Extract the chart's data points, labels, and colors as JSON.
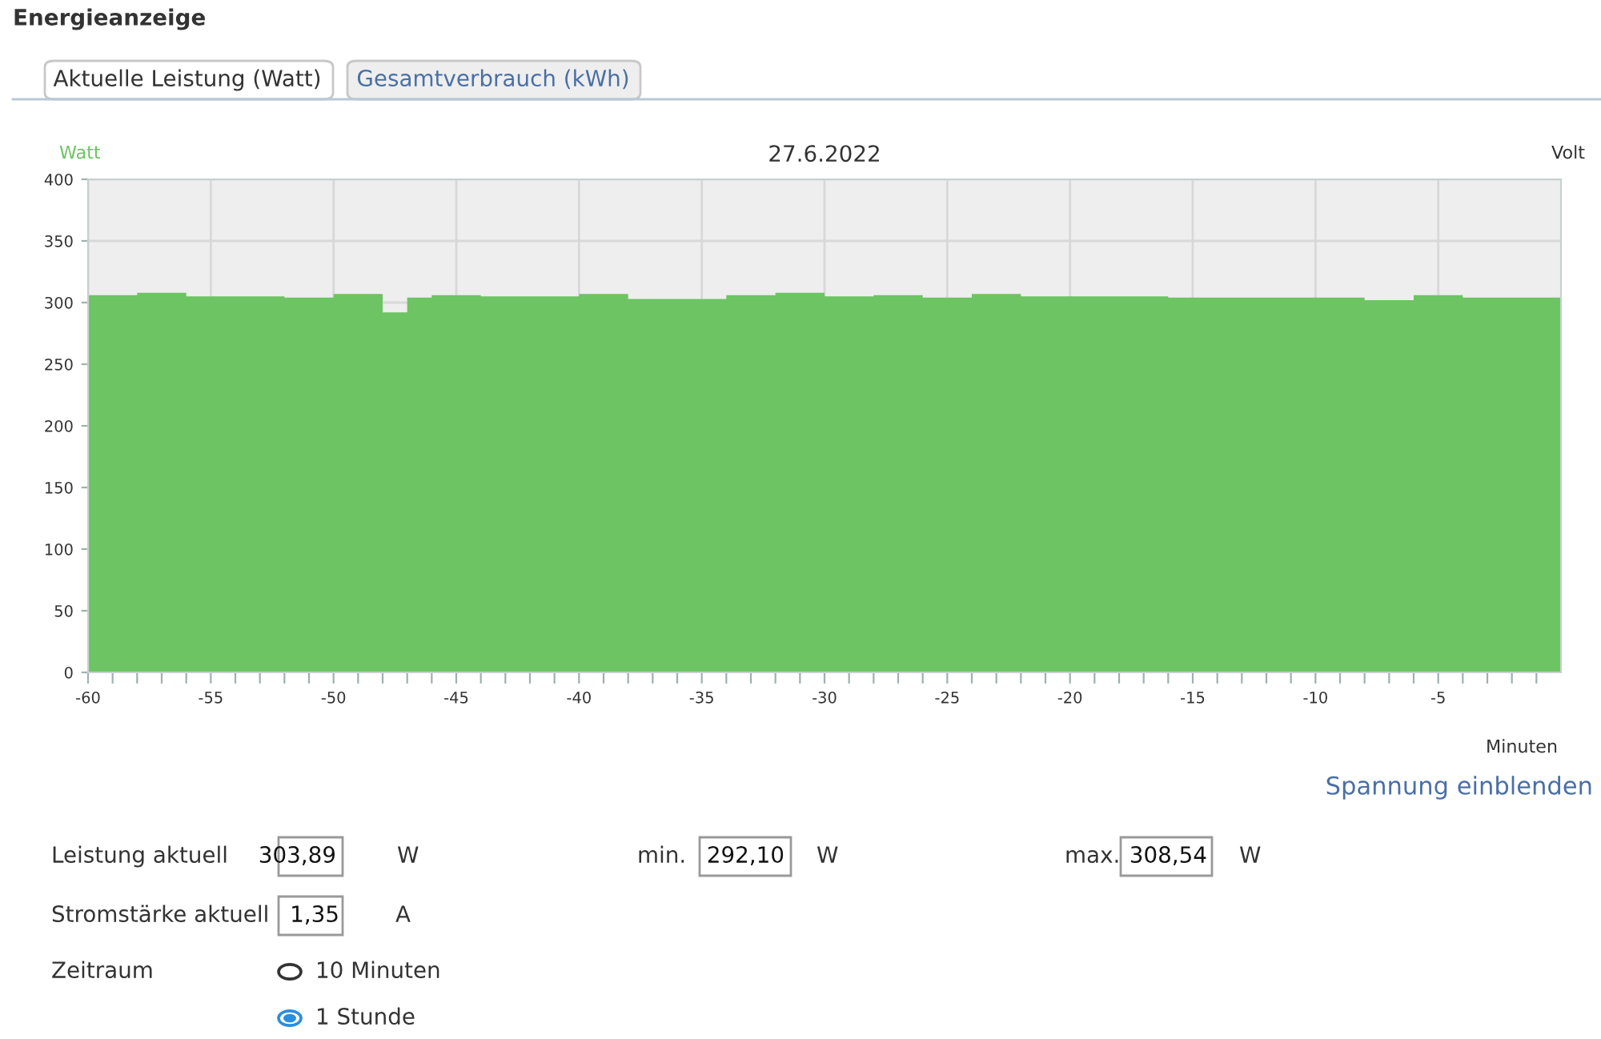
{
  "chart_data": {
    "type": "area",
    "title": "Energieanzeige",
    "subtitle": "27.6.2022",
    "ylabel": "Watt",
    "y2label": "Volt",
    "xlabel": "Minuten",
    "x": [
      -60,
      -58,
      -58,
      -56,
      -56,
      -52,
      -52,
      -50,
      -50,
      -48,
      -48,
      -47,
      -47,
      -46,
      -46,
      -44,
      -44,
      -40,
      -40,
      -38,
      -38,
      -34,
      -34,
      -32,
      -32,
      -30,
      -30,
      -28,
      -28,
      -26,
      -26,
      -24,
      -24,
      -22,
      -22,
      -16,
      -16,
      -8,
      -8,
      -6,
      -6,
      -4,
      -4,
      0
    ],
    "series": [
      {
        "color": "#6cc462",
        "values": [
          306,
          306,
          308,
          308,
          305,
          305,
          304,
          304,
          307,
          307,
          292,
          292,
          304,
          304,
          306,
          306,
          305,
          305,
          307,
          307,
          303,
          303,
          306,
          306,
          308,
          308,
          305,
          305,
          306,
          306,
          304,
          304,
          307,
          307,
          305,
          305,
          304,
          304,
          302,
          302,
          306,
          306,
          304,
          304
        ]
      }
    ],
    "xlim": [
      -60,
      0
    ],
    "ylim": [
      0,
      400
    ],
    "xticks": [
      -60,
      {
        "value": -59,
        "label": null
      },
      {
        "value": -58,
        "label": null
      },
      {
        "value": -57,
        "label": null
      },
      {
        "value": -56,
        "label": null
      },
      -55,
      {
        "value": -54,
        "label": null
      },
      {
        "value": -53,
        "label": null
      },
      {
        "value": -52,
        "label": null
      },
      {
        "value": -51,
        "label": null
      },
      -50,
      {
        "value": -49,
        "label": null
      },
      {
        "value": -48,
        "label": null
      },
      {
        "value": -47,
        "label": null
      },
      {
        "value": -46,
        "label": null
      },
      -45,
      {
        "value": -44,
        "label": null
      },
      {
        "value": -43,
        "label": null
      },
      {
        "value": -42,
        "label": null
      },
      {
        "value": -41,
        "label": null
      },
      -40,
      {
        "value": -39,
        "label": null
      },
      {
        "value": -38,
        "label": null
      },
      {
        "value": -37,
        "label": null
      },
      {
        "value": -36,
        "label": null
      },
      -35,
      {
        "value": -34,
        "label": null
      },
      {
        "value": -33,
        "label": null
      },
      {
        "value": -32,
        "label": null
      },
      {
        "value": -31,
        "label": null
      },
      -30,
      {
        "value": -29,
        "label": null
      },
      {
        "value": -28,
        "label": null
      },
      {
        "value": -27,
        "label": null
      },
      {
        "value": -26,
        "label": null
      },
      -25,
      {
        "value": -24,
        "label": null
      },
      {
        "value": -23,
        "label": null
      },
      {
        "value": -22,
        "label": null
      },
      {
        "value": -21,
        "label": null
      },
      -20,
      {
        "value": -19,
        "label": null
      },
      {
        "value": -18,
        "label": null
      },
      {
        "value": -17,
        "label": null
      },
      {
        "value": -16,
        "label": null
      },
      -15,
      {
        "value": -14,
        "label": null
      },
      {
        "value": -13,
        "label": null
      },
      {
        "value": -12,
        "label": null
      },
      {
        "value": -11,
        "label": null
      },
      -10,
      {
        "value": -9,
        "label": null
      },
      {
        "value": -8,
        "label": null
      },
      {
        "value": -7,
        "label": null
      },
      {
        "value": -6,
        "label": null
      },
      -5,
      {
        "value": -4,
        "label": null
      },
      {
        "value": -3,
        "label": null
      },
      {
        "value": -2,
        "label": null
      },
      {
        "value": -1,
        "label": null
      }
    ],
    "yticks": [
      0,
      50,
      100,
      150,
      200,
      250,
      300,
      350,
      400
    ],
    "grid": true,
    "annotations": [
      "Aktuelle Leistung (Watt)",
      "Gesamtverbrauch (kWh)",
      "Spannung einblenden",
      "Leistung aktuell",
      "303,89",
      "W",
      "min.",
      "292,10",
      "W",
      "max.",
      "308,54",
      "W",
      "Stromstärke aktuell",
      "1,35",
      "A",
      "Zeitraum",
      "10 Minuten",
      "1 Stunde"
    ]
  }
}
